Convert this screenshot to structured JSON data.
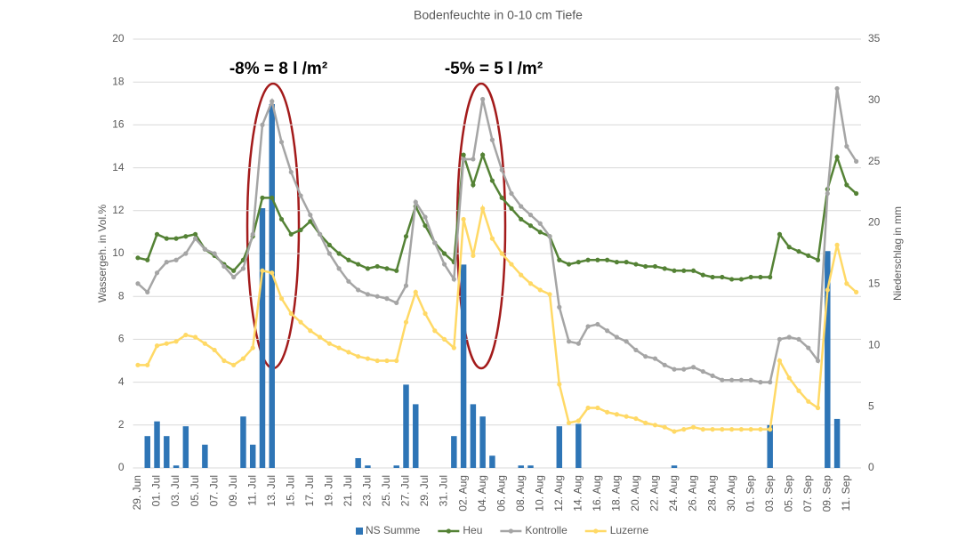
{
  "chart_data": {
    "type": "bar_line",
    "title": "Bodenfeuchte in 0-10 cm Tiefe",
    "y_label": "Wassergeh. in Vol.%",
    "y2_label": "Niederschlag in mm",
    "annotations": [
      "-8% = 8 l /m²",
      "-5% = 5 l /m²"
    ],
    "categories": [
      "29. Jun",
      null,
      "01. Jul",
      null,
      "03. Jul",
      null,
      "05. Jul",
      null,
      "07. Jul",
      null,
      "09. Jul",
      null,
      "11. Jul",
      null,
      "13. Jul",
      null,
      "15. Jul",
      null,
      "17. Jul",
      null,
      "19. Jul",
      null,
      "21. Jul",
      null,
      "23. Jul",
      null,
      "25. Jul",
      null,
      "27. Jul",
      null,
      "29. Jul",
      null,
      "31. Jul",
      null,
      "02. Aug",
      null,
      "04. Aug",
      null,
      "06. Aug",
      null,
      "08. Aug",
      null,
      "10. Aug",
      null,
      "12. Aug",
      null,
      "14. Aug",
      null,
      "16. Aug",
      null,
      "18. Aug",
      null,
      "20. Aug",
      null,
      "22. Aug",
      null,
      "24. Aug",
      null,
      "26. Aug",
      null,
      "28. Aug",
      null,
      "30. Aug",
      null,
      "01. Sep",
      null,
      "03. Sep",
      null,
      "05. Sep",
      null,
      "07. Sep",
      null,
      "09. Sep",
      null,
      "11. Sep",
      null
    ],
    "series": [
      {
        "name": "NS Summe",
        "kind": "bar",
        "axis": "y2",
        "color": "#2e75b6",
        "values": [
          0,
          2.6,
          3.8,
          2.6,
          0.2,
          3.4,
          0,
          1.9,
          0,
          0,
          0,
          4.2,
          1.9,
          21.2,
          29.7,
          0,
          0,
          0,
          0,
          0,
          0,
          0,
          0,
          0.8,
          0.2,
          0,
          0,
          0.2,
          6.8,
          5.2,
          0,
          0,
          0,
          2.6,
          16.6,
          5.2,
          4.2,
          1.0,
          0,
          0,
          0.2,
          0.2,
          0,
          0,
          3.4,
          0,
          3.6,
          0,
          0,
          0,
          0,
          0,
          0,
          0,
          0,
          0,
          0.2,
          0,
          0,
          0,
          0,
          0,
          0,
          0,
          0,
          0,
          3.5,
          0,
          0,
          0,
          0,
          0,
          17.7,
          4.0,
          0,
          0
        ]
      },
      {
        "name": "Heu",
        "kind": "line",
        "color": "#548235",
        "values": [
          9.8,
          9.7,
          10.9,
          10.7,
          10.7,
          10.8,
          10.9,
          10.2,
          9.9,
          9.5,
          9.2,
          9.7,
          10.8,
          12.6,
          12.6,
          11.6,
          10.9,
          11.1,
          11.5,
          10.9,
          10.4,
          10.0,
          9.7,
          9.5,
          9.3,
          9.4,
          9.3,
          9.2,
          10.8,
          12.2,
          11.3,
          10.5,
          10.0,
          9.6,
          14.6,
          13.2,
          14.6,
          13.4,
          12.6,
          12.1,
          11.6,
          11.3,
          11.0,
          10.8,
          9.7,
          9.5,
          9.6,
          9.7,
          9.7,
          9.7,
          9.6,
          9.6,
          9.5,
          9.4,
          9.4,
          9.3,
          9.2,
          9.2,
          9.2,
          9.0,
          8.9,
          8.9,
          8.8,
          8.8,
          8.9,
          8.9,
          8.9,
          10.9,
          10.3,
          10.1,
          9.9,
          9.7,
          13.0,
          14.5,
          13.2,
          12.8
        ]
      },
      {
        "name": "Kontrolle",
        "kind": "line",
        "color": "#a5a5a5",
        "values": [
          8.6,
          8.2,
          9.1,
          9.6,
          9.7,
          10.0,
          10.7,
          10.2,
          10.0,
          9.4,
          8.9,
          9.3,
          10.9,
          16.0,
          17.1,
          15.2,
          13.8,
          12.7,
          11.8,
          10.9,
          10.0,
          9.3,
          8.7,
          8.3,
          8.1,
          8.0,
          7.9,
          7.7,
          8.5,
          12.4,
          11.7,
          10.5,
          9.5,
          8.8,
          14.4,
          14.4,
          17.2,
          15.3,
          13.9,
          12.8,
          12.2,
          11.8,
          11.4,
          10.8,
          7.5,
          5.9,
          5.8,
          6.6,
          6.7,
          6.4,
          6.1,
          5.9,
          5.5,
          5.2,
          5.1,
          4.8,
          4.6,
          4.6,
          4.7,
          4.5,
          4.3,
          4.1,
          4.1,
          4.1,
          4.1,
          4.0,
          4.0,
          6.0,
          6.1,
          6.0,
          5.6,
          5.0,
          12.8,
          17.7,
          15.0,
          14.3
        ]
      },
      {
        "name": "Luzerne",
        "kind": "line",
        "color": "#ffd966",
        "values": [
          4.8,
          4.8,
          5.7,
          5.8,
          5.9,
          6.2,
          6.1,
          5.8,
          5.5,
          5.0,
          4.8,
          5.1,
          5.6,
          9.2,
          9.1,
          7.9,
          7.2,
          6.8,
          6.4,
          6.1,
          5.8,
          5.6,
          5.4,
          5.2,
          5.1,
          5.0,
          5.0,
          5.0,
          6.8,
          8.2,
          7.2,
          6.4,
          6.0,
          5.6,
          11.6,
          9.9,
          12.1,
          10.7,
          10.0,
          9.5,
          9.0,
          8.6,
          8.3,
          8.1,
          3.9,
          2.1,
          2.2,
          2.8,
          2.8,
          2.6,
          2.5,
          2.4,
          2.3,
          2.1,
          2.0,
          1.9,
          1.7,
          1.8,
          1.9,
          1.8,
          1.8,
          1.8,
          1.8,
          1.8,
          1.8,
          1.8,
          1.8,
          5.0,
          4.2,
          3.6,
          3.1,
          2.8,
          8.3,
          10.4,
          8.6,
          8.2
        ]
      }
    ],
    "ylim": [
      0,
      20
    ],
    "yticks": [
      0,
      2,
      4,
      6,
      8,
      10,
      12,
      14,
      16,
      18,
      20
    ],
    "y2lim": [
      0,
      35
    ],
    "y2ticks": [
      0,
      5,
      10,
      15,
      20,
      25,
      30,
      35
    ],
    "grid": true,
    "legend": "bottom"
  }
}
